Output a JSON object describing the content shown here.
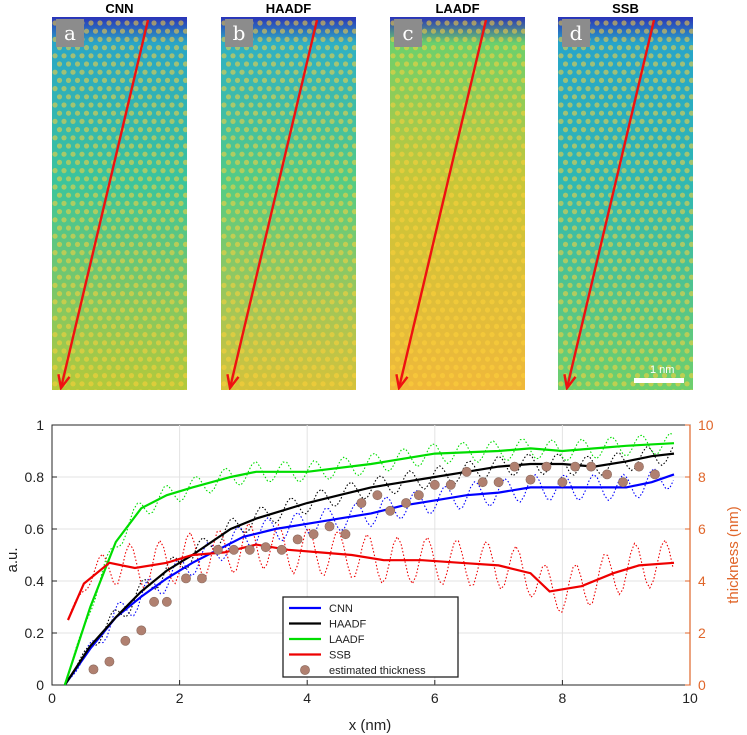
{
  "panels": [
    {
      "title": "CNN",
      "letter": "a",
      "colors": [
        "#2a33b8",
        "#2aa6c6",
        "#3cc59b",
        "#b5c93a"
      ]
    },
    {
      "title": "HAADF",
      "letter": "b",
      "colors": [
        "#2a33b8",
        "#2fb0c4",
        "#55cc84",
        "#d6c23a"
      ]
    },
    {
      "title": "LAADF",
      "letter": "c",
      "colors": [
        "#2a33b8",
        "#6bd06d",
        "#c9c638",
        "#f0b83a"
      ]
    },
    {
      "title": "SSB",
      "letter": "d",
      "colors": [
        "#2a33b8",
        "#27a5c9",
        "#30b8b3",
        "#6fcf6c"
      ]
    }
  ],
  "scalebar_label": "1 nm",
  "chart_data": {
    "type": "line",
    "xlabel": "x (nm)",
    "ylabel": "a.u.",
    "y2label": "thickness (nm)",
    "xlim": [
      0,
      10
    ],
    "ylim": [
      0,
      1
    ],
    "y2lim": [
      0,
      10
    ],
    "xticks": [
      0,
      2,
      4,
      6,
      8,
      10
    ],
    "yticks": [
      0,
      0.2,
      0.4,
      0.6,
      0.8,
      1
    ],
    "y2ticks": [
      0,
      2,
      4,
      6,
      8,
      10
    ],
    "grid": true,
    "legend_position": "lower-center",
    "series": [
      {
        "name": "CNN",
        "color": "#0000ff",
        "axis": "left",
        "x": [
          0.2,
          0.6,
          1.0,
          1.4,
          1.8,
          2.2,
          2.6,
          3.0,
          3.5,
          4.0,
          4.5,
          5.0,
          5.5,
          6.0,
          6.5,
          7.0,
          7.5,
          8.0,
          8.5,
          9.0,
          9.4,
          9.75
        ],
        "y": [
          0.0,
          0.14,
          0.26,
          0.34,
          0.41,
          0.47,
          0.52,
          0.57,
          0.6,
          0.62,
          0.64,
          0.66,
          0.69,
          0.71,
          0.73,
          0.74,
          0.76,
          0.76,
          0.76,
          0.76,
          0.78,
          0.81
        ]
      },
      {
        "name": "HAADF",
        "color": "#000000",
        "axis": "left",
        "x": [
          0.2,
          0.6,
          1.0,
          1.4,
          1.8,
          2.2,
          2.8,
          3.2,
          3.6,
          4.0,
          4.5,
          5.0,
          5.5,
          6.0,
          6.5,
          7.0,
          7.5,
          8.0,
          8.5,
          9.0,
          9.4,
          9.75
        ],
        "y": [
          0.0,
          0.15,
          0.26,
          0.36,
          0.44,
          0.5,
          0.6,
          0.64,
          0.67,
          0.7,
          0.73,
          0.76,
          0.78,
          0.8,
          0.82,
          0.84,
          0.85,
          0.85,
          0.84,
          0.86,
          0.88,
          0.89
        ]
      },
      {
        "name": "LAADF",
        "color": "#00dd00",
        "axis": "left",
        "x": [
          0.2,
          0.6,
          1.0,
          1.4,
          1.8,
          2.2,
          2.8,
          3.2,
          3.6,
          4.0,
          5.0,
          6.0,
          7.0,
          7.5,
          8.0,
          8.5,
          9.0,
          9.75
        ],
        "y": [
          0.0,
          0.3,
          0.55,
          0.68,
          0.73,
          0.76,
          0.8,
          0.82,
          0.82,
          0.82,
          0.85,
          0.89,
          0.9,
          0.91,
          0.9,
          0.91,
          0.92,
          0.93
        ]
      },
      {
        "name": "SSB",
        "color": "#ee0000",
        "axis": "left",
        "x": [
          0.25,
          0.5,
          0.9,
          1.3,
          1.8,
          2.2,
          2.7,
          3.2,
          3.7,
          4.2,
          4.7,
          5.2,
          5.8,
          6.4,
          7.0,
          7.5,
          7.8,
          8.3,
          8.8,
          9.2,
          9.75
        ],
        "y": [
          0.25,
          0.39,
          0.47,
          0.45,
          0.47,
          0.5,
          0.51,
          0.54,
          0.52,
          0.51,
          0.5,
          0.48,
          0.48,
          0.47,
          0.46,
          0.43,
          0.36,
          0.38,
          0.43,
          0.46,
          0.47
        ]
      },
      {
        "name": "estimated thickness",
        "color": "#b08070",
        "axis": "right",
        "marker": "circle",
        "x": [
          0.65,
          0.9,
          1.15,
          1.4,
          1.6,
          1.8,
          2.1,
          2.35,
          2.6,
          2.85,
          3.1,
          3.35,
          3.6,
          3.85,
          4.1,
          4.35,
          4.6,
          4.85,
          5.1,
          5.3,
          5.55,
          5.75,
          6.0,
          6.25,
          6.5,
          6.75,
          7.0,
          7.25,
          7.5,
          7.75,
          8.0,
          8.2,
          8.45,
          8.7,
          8.95,
          9.2,
          9.45
        ],
        "y": [
          0.6,
          0.9,
          1.7,
          2.1,
          3.2,
          3.2,
          4.1,
          4.1,
          5.2,
          5.2,
          5.2,
          5.3,
          5.2,
          5.6,
          5.8,
          6.1,
          5.8,
          7.0,
          7.3,
          6.7,
          7.0,
          7.3,
          7.7,
          7.7,
          8.2,
          7.8,
          7.8,
          8.4,
          7.9,
          8.4,
          7.8,
          8.4,
          8.4,
          8.1,
          7.8,
          8.4,
          8.1
        ]
      }
    ]
  }
}
